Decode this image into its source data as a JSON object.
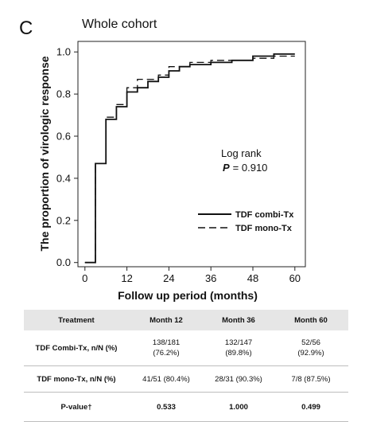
{
  "panel_label": "C",
  "panel_title": "Whole cohort",
  "chart_data": {
    "type": "line",
    "subtype": "kaplan-meier-step",
    "title": "Whole cohort",
    "xlabel": "Follow up period (months)",
    "ylabel": "The proportion of virologic response",
    "xlim": [
      -2,
      63
    ],
    "ylim": [
      -0.02,
      1.05
    ],
    "xticks": [
      0,
      12,
      24,
      36,
      48,
      60
    ],
    "yticks": [
      0.0,
      0.2,
      0.4,
      0.6,
      0.8,
      1.0
    ],
    "ytick_labels": [
      "0.0",
      "0.2",
      "0.4",
      "0.6",
      "0.8",
      "1.0"
    ],
    "grid": false,
    "legend_position": "lower-right",
    "annotation": {
      "line1": "Log rank",
      "p_label": "P",
      "p_value": "= 0.910"
    },
    "series": [
      {
        "name": "TDF combi-Tx",
        "style": "solid",
        "x": [
          0,
          3,
          3,
          6,
          6,
          9,
          9,
          12,
          12,
          15,
          15,
          18,
          18,
          21,
          21,
          24,
          24,
          27,
          27,
          30,
          30,
          36,
          36,
          42,
          42,
          48,
          48,
          54,
          54,
          60
        ],
        "y": [
          0,
          0,
          0.47,
          0.47,
          0.68,
          0.68,
          0.74,
          0.74,
          0.81,
          0.81,
          0.83,
          0.83,
          0.86,
          0.86,
          0.88,
          0.88,
          0.91,
          0.91,
          0.93,
          0.93,
          0.94,
          0.94,
          0.95,
          0.95,
          0.96,
          0.96,
          0.98,
          0.98,
          0.99,
          0.99
        ]
      },
      {
        "name": "TDF mono-Tx",
        "style": "dashed",
        "x": [
          0,
          3,
          3,
          6,
          6,
          9,
          9,
          12,
          12,
          15,
          15,
          21,
          21,
          24,
          24,
          30,
          30,
          36,
          36,
          48,
          48,
          54,
          54,
          60
        ],
        "y": [
          0,
          0,
          0.47,
          0.47,
          0.69,
          0.69,
          0.75,
          0.75,
          0.83,
          0.83,
          0.87,
          0.87,
          0.89,
          0.89,
          0.93,
          0.93,
          0.95,
          0.95,
          0.96,
          0.96,
          0.97,
          0.97,
          0.98,
          0.98
        ]
      }
    ]
  },
  "table": {
    "headers": [
      "Treatment",
      "Month 12",
      "Month 36",
      "Month 60"
    ],
    "rows": [
      [
        [
          "TDF Combi-Tx, n/N (%)"
        ],
        [
          "138/181",
          "(76.2%)"
        ],
        [
          "132/147",
          "(89.8%)"
        ],
        [
          "52/56",
          "(92.9%)"
        ]
      ],
      [
        [
          "TDF mono-Tx, n/N (%)"
        ],
        [
          "41/51 (80.4%)"
        ],
        [
          "28/31 (90.3%)"
        ],
        [
          "7/8 (87.5%)"
        ]
      ],
      [
        [
          "P-value†"
        ],
        [
          "0.533"
        ],
        [
          "1.000"
        ],
        [
          "0.499"
        ]
      ]
    ]
  }
}
